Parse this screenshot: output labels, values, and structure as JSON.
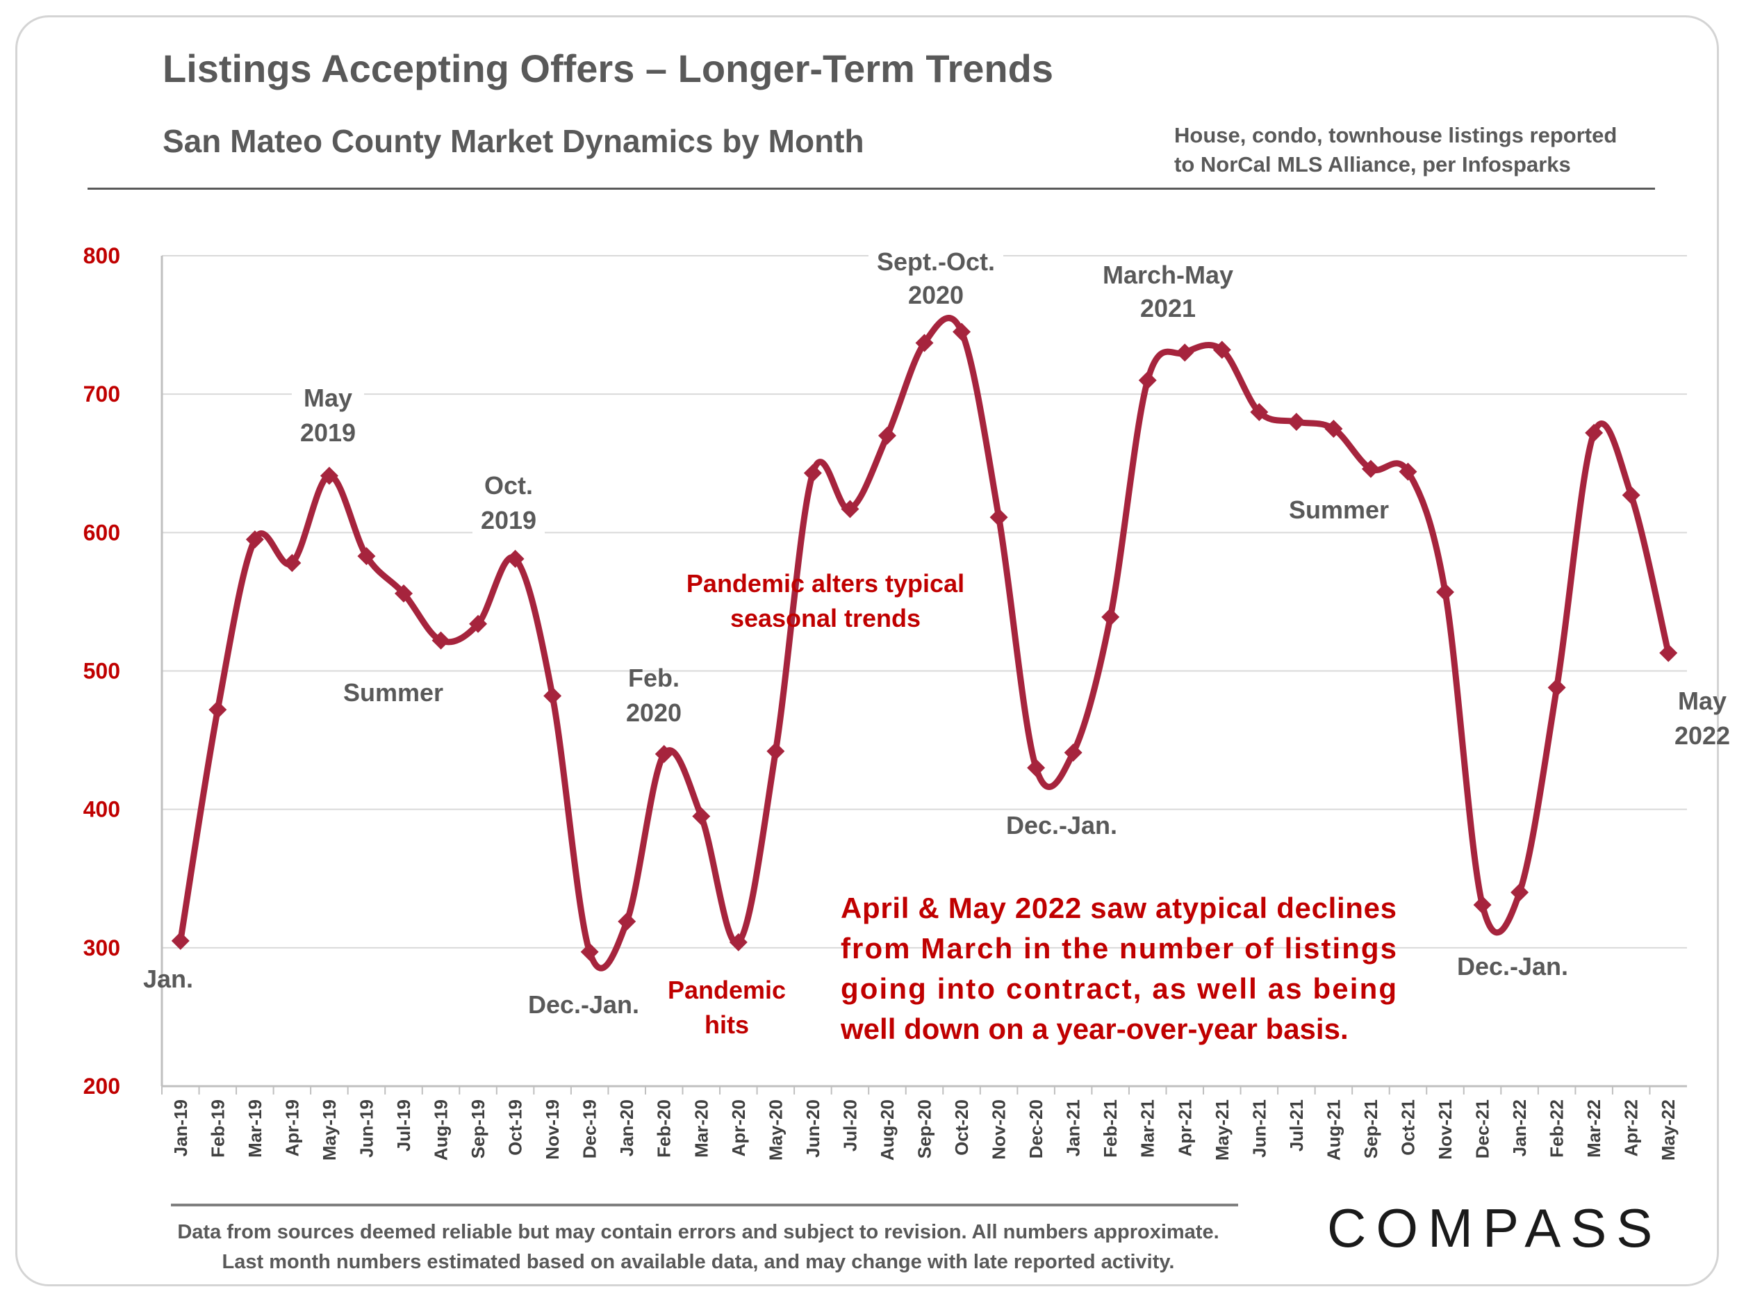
{
  "title": "Listings Accepting Offers – Longer-Term Trends",
  "subtitle": "San Mateo County Market Dynamics by Month",
  "source_note": [
    "House, condo, townhouse listings reported",
    "to NorCal MLS Alliance, per Infosparks"
  ],
  "footer": [
    "Data from sources deemed reliable but may contain errors and subject to revision. All numbers approximate.",
    "Last month numbers estimated based on available data, and may change with late reported activity."
  ],
  "logo": "COMPASS",
  "colors": {
    "line": "#a6243d",
    "marker": "#a6243d",
    "axis_text": "#c00000",
    "label_gray": "#595959",
    "label_red": "#c00000",
    "grid": "#d9d9d9"
  },
  "chart_data": {
    "type": "line",
    "title": "Listings Accepting Offers – Longer-Term Trends",
    "subtitle": "San Mateo County Market Dynamics by Month",
    "categories": [
      "Jan-19",
      "Feb-19",
      "Mar-19",
      "Apr-19",
      "May-19",
      "Jun-19",
      "Jul-19",
      "Aug-19",
      "Sep-19",
      "Oct-19",
      "Nov-19",
      "Dec-19",
      "Jan-20",
      "Feb-20",
      "Mar-20",
      "Apr-20",
      "May-20",
      "Jun-20",
      "Jul-20",
      "Aug-20",
      "Sep-20",
      "Oct-20",
      "Nov-20",
      "Dec-20",
      "Jan-21",
      "Feb-21",
      "Mar-21",
      "Apr-21",
      "May-21",
      "Jun-21",
      "Jul-21",
      "Aug-21",
      "Sep-21",
      "Oct-21",
      "Nov-21",
      "Dec-21",
      "Jan-22",
      "Feb-22",
      "Mar-22",
      "Apr-22",
      "May-22"
    ],
    "series": [
      {
        "values": [
          305,
          472,
          595,
          578,
          641,
          583,
          556,
          522,
          534,
          581,
          482,
          297,
          319,
          440,
          395,
          304,
          442,
          643,
          617,
          670,
          737,
          745,
          611,
          430,
          441,
          539,
          710,
          730,
          732,
          687,
          680,
          675,
          646,
          644,
          557,
          331,
          340,
          488,
          672,
          627,
          513
        ]
      }
    ],
    "ylim": [
      200,
      800
    ],
    "yticks": [
      "200",
      "300",
      "400",
      "500",
      "600",
      "700",
      "800"
    ],
    "grid": true,
    "annotations": [
      {
        "lines": [
          "Jan."
        ],
        "color": "gray"
      },
      {
        "lines": [
          "May",
          "2019"
        ],
        "color": "gray"
      },
      {
        "lines": [
          "Oct.",
          "2019"
        ],
        "color": "gray"
      },
      {
        "lines": [
          "Summer"
        ],
        "color": "gray"
      },
      {
        "lines": [
          "Dec.-Jan."
        ],
        "color": "gray"
      },
      {
        "lines": [
          "Feb.",
          "2020"
        ],
        "color": "gray"
      },
      {
        "lines": [
          "Pandemic",
          "hits"
        ],
        "color": "red"
      },
      {
        "lines": [
          "Pandemic alters typical",
          "seasonal trends"
        ],
        "color": "red"
      },
      {
        "lines": [
          "Sept.-Oct.",
          "2020"
        ],
        "color": "gray"
      },
      {
        "lines": [
          "March-May",
          "2021"
        ],
        "color": "gray"
      },
      {
        "lines": [
          "Dec.-Jan."
        ],
        "color": "gray"
      },
      {
        "lines": [
          "Summer"
        ],
        "color": "gray"
      },
      {
        "lines": [
          "Dec.-Jan."
        ],
        "color": "gray"
      },
      {
        "lines": [
          "May",
          "2022"
        ],
        "color": "gray"
      },
      {
        "lines": [
          "April & May 2022 saw atypical declines",
          "from March in the number of listings",
          "going into contract, as well as being",
          "well down on a year-over-year basis."
        ],
        "color": "red"
      }
    ]
  }
}
